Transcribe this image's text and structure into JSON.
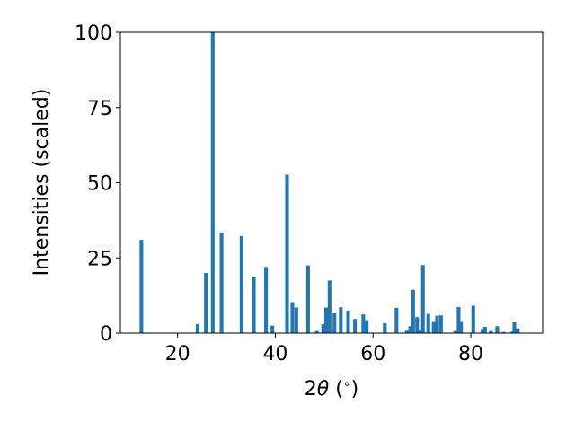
{
  "chart_data": {
    "type": "bar",
    "title": "",
    "xlabel_parts": [
      "2",
      "θ",
      " (",
      "∘",
      ")"
    ],
    "ylabel": "Intensities (scaled)",
    "xlim": [
      8.3,
      94.7
    ],
    "ylim": [
      0,
      100
    ],
    "xticks": [
      20,
      40,
      60,
      80
    ],
    "yticks": [
      0,
      25,
      50,
      75,
      100
    ],
    "bar_width": 0.75,
    "color": "#1f77b4",
    "grid": false,
    "series": [
      {
        "x": [
          12.6,
          24.1,
          25.8,
          27.2,
          29.0,
          33.1,
          35.6,
          38.1,
          39.4,
          42.4,
          43.5,
          44.3,
          46.7,
          48.5,
          49.8,
          50.4,
          51.1,
          52.1,
          53.4,
          54.9,
          56.3,
          58.0,
          58.7,
          62.4,
          64.8,
          66.9,
          67.6,
          68.2,
          69.0,
          69.5,
          70.2,
          71.3,
          72.4,
          73.1,
          73.9,
          76.8,
          77.5,
          78.0,
          80.5,
          82.4,
          82.9,
          84.1,
          85.4,
          86.7,
          88.5,
          88.9,
          89.6
        ],
        "y": [
          31,
          3,
          20,
          100,
          33.5,
          32.3,
          18.5,
          22,
          2.5,
          52.7,
          10.3,
          8.5,
          22.5,
          0.7,
          3,
          8.5,
          17.5,
          6.6,
          8.6,
          7.5,
          4.7,
          6.2,
          4.3,
          3.3,
          8.4,
          0.8,
          2.3,
          14.4,
          5.3,
          1,
          22.6,
          6.4,
          3.7,
          5.8,
          5.9,
          0.7,
          8.7,
          3.7,
          9.1,
          1.4,
          2.1,
          0.7,
          2.3,
          0.4,
          0.5,
          3.6,
          1.6
        ]
      }
    ]
  }
}
